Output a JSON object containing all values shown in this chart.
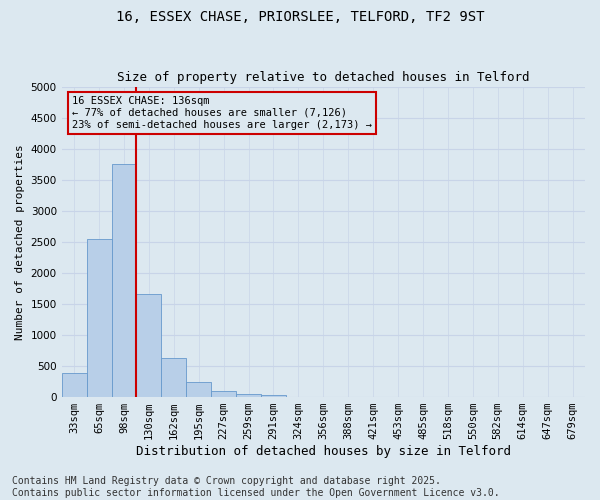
{
  "title_line1": "16, ESSEX CHASE, PRIORSLEE, TELFORD, TF2 9ST",
  "title_line2": "Size of property relative to detached houses in Telford",
  "xlabel": "Distribution of detached houses by size in Telford",
  "ylabel": "Number of detached properties",
  "categories": [
    "33sqm",
    "65sqm",
    "98sqm",
    "130sqm",
    "162sqm",
    "195sqm",
    "227sqm",
    "259sqm",
    "291sqm",
    "324sqm",
    "356sqm",
    "388sqm",
    "421sqm",
    "453sqm",
    "485sqm",
    "518sqm",
    "550sqm",
    "582sqm",
    "614sqm",
    "647sqm",
    "679sqm"
  ],
  "values": [
    380,
    2550,
    3750,
    1650,
    620,
    235,
    90,
    45,
    30,
    0,
    0,
    0,
    0,
    0,
    0,
    0,
    0,
    0,
    0,
    0,
    0
  ],
  "bar_color": "#b8cfe8",
  "bar_edge_color": "#6699cc",
  "vline_color": "#cc0000",
  "annotation_text": "16 ESSEX CHASE: 136sqm\n← 77% of detached houses are smaller (7,126)\n23% of semi-detached houses are larger (2,173) →",
  "annotation_box_color": "#cc0000",
  "ylim": [
    0,
    5000
  ],
  "yticks": [
    0,
    500,
    1000,
    1500,
    2000,
    2500,
    3000,
    3500,
    4000,
    4500,
    5000
  ],
  "grid_color": "#c8d4e8",
  "background_color": "#dce8f0",
  "footer_line1": "Contains HM Land Registry data © Crown copyright and database right 2025.",
  "footer_line2": "Contains public sector information licensed under the Open Government Licence v3.0.",
  "footer_fontsize": 7.0,
  "title_fontsize": 10,
  "subtitle_fontsize": 9,
  "ylabel_fontsize": 8,
  "xlabel_fontsize": 9,
  "tick_fontsize": 7.5
}
